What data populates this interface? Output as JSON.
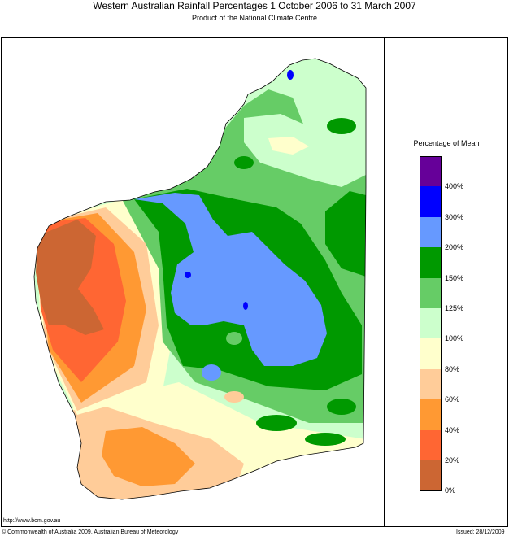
{
  "title": "Western Australian Rainfall Percentages 1 October 2006 to 31 March 2007",
  "subtitle": "Product of the National Climate Centre",
  "legend": {
    "title": "Percentage of Mean",
    "levels": [
      {
        "label": "400%",
        "color": "#660099"
      },
      {
        "label": "300%",
        "color": "#0000ff"
      },
      {
        "label": "200%",
        "color": "#6699ff"
      },
      {
        "label": "150%",
        "color": "#009900"
      },
      {
        "label": "125%",
        "color": "#66cc66"
      },
      {
        "label": "100%",
        "color": "#ccffcc"
      },
      {
        "label": "80%",
        "color": "#ffffcc"
      },
      {
        "label": "60%",
        "color": "#ffcc99"
      },
      {
        "label": "40%",
        "color": "#ff9933"
      },
      {
        "label": "20%",
        "color": "#ff6633"
      },
      {
        "label": "0%",
        "color": "#cc6633"
      }
    ]
  },
  "footer": {
    "url": "http://www.bom.gov.au",
    "copyright": "© Commonwealth of Australia 2009, Australian Bureau of Meteorology",
    "issued": "Issued: 28/12/2009"
  }
}
